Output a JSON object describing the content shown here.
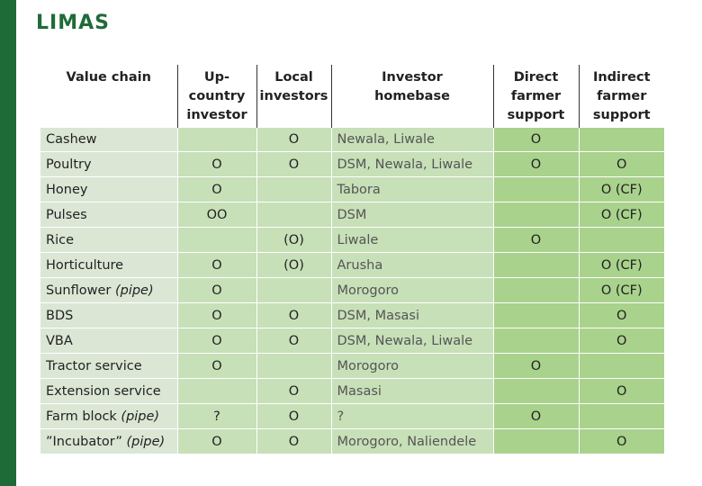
{
  "logo": "LIMAS",
  "columns": {
    "value_chain": "Value chain",
    "upcountry": [
      "Up-",
      "country",
      "investor"
    ],
    "local": [
      "Local",
      "investors"
    ],
    "homebase": [
      "Investor",
      "homebase"
    ],
    "direct": [
      "Direct",
      "farmer",
      "support"
    ],
    "indirect": [
      "Indirect",
      "farmer",
      "support"
    ]
  },
  "rows": [
    {
      "name": "Cashew",
      "suffix": "",
      "up": "",
      "local": "O",
      "home": "Newala, Liwale",
      "direct": "O",
      "indirect": ""
    },
    {
      "name": "Poultry",
      "suffix": "",
      "up": "O",
      "local": "O",
      "home": "DSM, Newala, Liwale",
      "direct": "O",
      "indirect": "O"
    },
    {
      "name": "Honey",
      "suffix": "",
      "up": "O",
      "local": "",
      "home": "Tabora",
      "direct": "",
      "indirect": "O (CF)"
    },
    {
      "name": "Pulses",
      "suffix": "",
      "up": "OO",
      "local": "",
      "home": "DSM",
      "direct": "",
      "indirect": "O (CF)"
    },
    {
      "name": "Rice",
      "suffix": "",
      "up": "",
      "local": "(O)",
      "home": "Liwale",
      "direct": "O",
      "indirect": ""
    },
    {
      "name": "Horticulture",
      "suffix": "",
      "up": "O",
      "local": "(O)",
      "home": "Arusha",
      "direct": "",
      "indirect": "O (CF)"
    },
    {
      "name": "Sunflower ",
      "suffix": "(pipe)",
      "up": "O",
      "local": "",
      "home": "Morogoro",
      "direct": "",
      "indirect": "O (CF)"
    },
    {
      "name": "BDS",
      "suffix": "",
      "up": "O",
      "local": "O",
      "home": "DSM, Masasi",
      "direct": "",
      "indirect": "O"
    },
    {
      "name": "VBA",
      "suffix": "",
      "up": "O",
      "local": "O",
      "home": "DSM, Newala, Liwale",
      "direct": "",
      "indirect": "O"
    },
    {
      "name": "Tractor service",
      "suffix": "",
      "up": "O",
      "local": "",
      "home": "Morogoro",
      "direct": "O",
      "indirect": ""
    },
    {
      "name": "Extension service",
      "suffix": "",
      "up": "",
      "local": "O",
      "home": "Masasi",
      "direct": "",
      "indirect": "O"
    },
    {
      "name": "Farm block ",
      "suffix": "(pipe)",
      "up": "?",
      "local": "O",
      "home": "?",
      "direct": "O",
      "indirect": ""
    },
    {
      "name": "”Incubator” ",
      "suffix": "(pipe)",
      "up": "O",
      "local": "O",
      "home": "Morogoro, Naliendele",
      "direct": "",
      "indirect": "O"
    }
  ]
}
